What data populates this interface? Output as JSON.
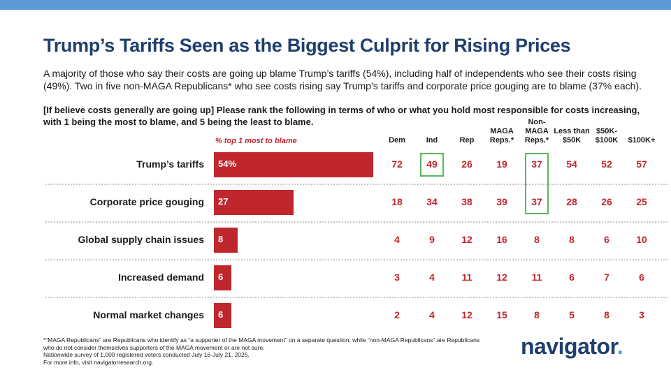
{
  "title": "Trump’s Tariffs Seen as the Biggest Culprit for Rising Prices",
  "subtitle": "A majority of those who say their costs are going up blame Trump’s tariffs (54%), including half of independents who see their costs rising (49%). Two in five non-MAGA Republicans* who see costs rising say Trump’s tariffs and corporate price gouging are to blame (37% each).",
  "question": "[If believe costs generally are going up] Please rank the following in terms of who or what you hold most responsible for costs increasing, with 1 being the most to blame, and 5 being the least to blame.",
  "colors": {
    "bar": "#c0272d",
    "title": "#1f3f6e",
    "highlight": "#5cb85c",
    "topbar": "#5b9bd5"
  },
  "chart_data": {
    "type": "bar",
    "orientation": "horizontal",
    "title": "% top 1 most to blame",
    "categories": [
      "Trump’s tariffs",
      "Corporate price gouging",
      "Global supply chain issues",
      "Increased demand",
      "Normal market changes"
    ],
    "values": [
      54,
      27,
      8,
      6,
      6
    ],
    "value_labels": [
      "54%",
      "27",
      "8",
      "6",
      "6"
    ],
    "xlim": [
      0,
      100
    ],
    "table": {
      "columns": [
        [
          "Dem"
        ],
        [
          "Ind"
        ],
        [
          "Rep"
        ],
        [
          "MAGA",
          "Reps.*"
        ],
        [
          "Non-",
          "MAGA",
          "Reps.*"
        ],
        [
          "Less than",
          "$50K"
        ],
        [
          "$50K-",
          "$100K"
        ],
        [
          "$100K+"
        ]
      ],
      "rows": [
        [
          72,
          49,
          26,
          19,
          37,
          54,
          52,
          57
        ],
        [
          18,
          34,
          38,
          39,
          37,
          28,
          26,
          25
        ],
        [
          4,
          9,
          12,
          16,
          8,
          8,
          6,
          10
        ],
        [
          3,
          4,
          11,
          12,
          11,
          6,
          7,
          6
        ],
        [
          2,
          4,
          12,
          15,
          8,
          5,
          8,
          3
        ]
      ],
      "highlights": [
        {
          "column": "Ind",
          "row": "Trump’s tariffs"
        },
        {
          "column": "Non-MAGA Reps.*",
          "row": "Trump’s tariffs"
        },
        {
          "column": "Non-MAGA Reps.*",
          "row": "Corporate price gouging"
        }
      ]
    }
  },
  "footnotes": [
    "*“MAGA Republicans” are Republicans who identify as “a supporter of the MAGA movement” on a separate question, while “non-MAGA Republicans” are Republicans who do not consider themselves supporters of the MAGA movement or are not sure.",
    "Nationwide survey of 1,000 registered voters conducted July 16-July 21, 2025.",
    "For more info, visit navigatorresearch.org."
  ],
  "logo": {
    "text": "navigator",
    "dot": "."
  }
}
